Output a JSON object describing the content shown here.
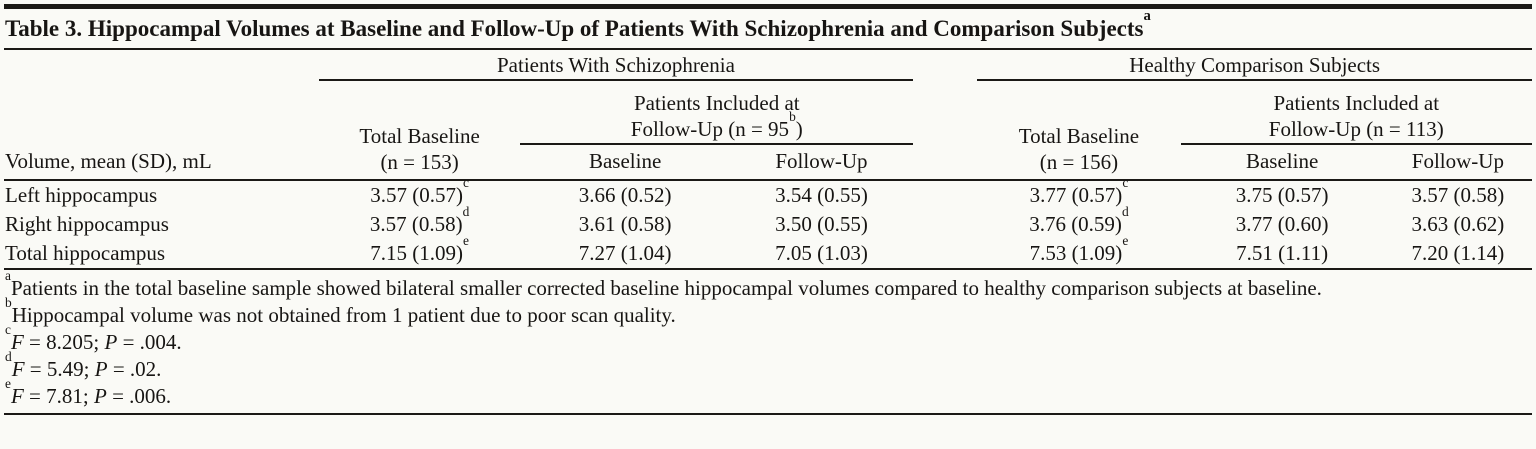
{
  "title": "Table 3. Hippocampal Volumes at Baseline and Follow-Up of Patients With Schizophrenia and Comparison Subjects",
  "title_sup": "a",
  "header": {
    "row_label": "Volume, mean (SD), mL",
    "groups": [
      {
        "label": "Patients With Schizophrenia",
        "total_line1": "Total Baseline",
        "total_line2": "(n = 153)",
        "included_line1": "Patients Included at",
        "included_line2_prefix": "Follow-Up (n = 95",
        "included_sup": "b",
        "included_line2_suffix": ")",
        "sub": [
          "Baseline",
          "Follow-Up"
        ]
      },
      {
        "label": "Healthy Comparison Subjects",
        "total_line1": "Total Baseline",
        "total_line2": "(n = 156)",
        "included_line1": "Patients Included at",
        "included_line2_prefix": "Follow-Up (n = 113",
        "included_line2_suffix": ")",
        "sub": [
          "Baseline",
          "Follow-Up"
        ]
      }
    ]
  },
  "rows": [
    {
      "label": "Left hippocampus",
      "cells": [
        {
          "v": "3.57 (0.57)",
          "sup": "c"
        },
        {
          "v": "3.66 (0.52)"
        },
        {
          "v": "3.54 (0.55)"
        },
        {
          "v": "3.77 (0.57)",
          "sup": "c"
        },
        {
          "v": "3.75 (0.57)"
        },
        {
          "v": "3.57 (0.58)"
        }
      ]
    },
    {
      "label": "Right hippocampus",
      "cells": [
        {
          "v": "3.57 (0.58)",
          "sup": "d"
        },
        {
          "v": "3.61 (0.58)"
        },
        {
          "v": "3.50 (0.55)"
        },
        {
          "v": "3.76 (0.59)",
          "sup": "d"
        },
        {
          "v": "3.77 (0.60)"
        },
        {
          "v": "3.63 (0.62)"
        }
      ]
    },
    {
      "label": "Total hippocampus",
      "cells": [
        {
          "v": "7.15 (1.09)",
          "sup": "e"
        },
        {
          "v": "7.27 (1.04)"
        },
        {
          "v": "7.05 (1.03)"
        },
        {
          "v": "7.53 (1.09)",
          "sup": "e"
        },
        {
          "v": "7.51 (1.11)"
        },
        {
          "v": "7.20 (1.14)"
        }
      ]
    }
  ],
  "footnotes": [
    {
      "sup": "a",
      "text": "Patients in the total baseline sample showed bilateral smaller corrected baseline hippocampal volumes compared to healthy comparison subjects at baseline."
    },
    {
      "sup": "b",
      "text": "Hippocampal volume was not obtained from 1 patient due to poor scan quality."
    },
    {
      "sup": "c",
      "parts": [
        [
          "i",
          "F"
        ],
        [
          "t",
          " = 8.205; "
        ],
        [
          "i",
          "P"
        ],
        [
          "t",
          " = .004."
        ]
      ]
    },
    {
      "sup": "d",
      "parts": [
        [
          "i",
          "F"
        ],
        [
          "t",
          " = 5.49; "
        ],
        [
          "i",
          "P"
        ],
        [
          "t",
          " = .02."
        ]
      ]
    },
    {
      "sup": "e",
      "parts": [
        [
          "i",
          "F"
        ],
        [
          "t",
          " = 7.81; "
        ],
        [
          "i",
          "P"
        ],
        [
          "t",
          " = .006."
        ]
      ]
    }
  ]
}
